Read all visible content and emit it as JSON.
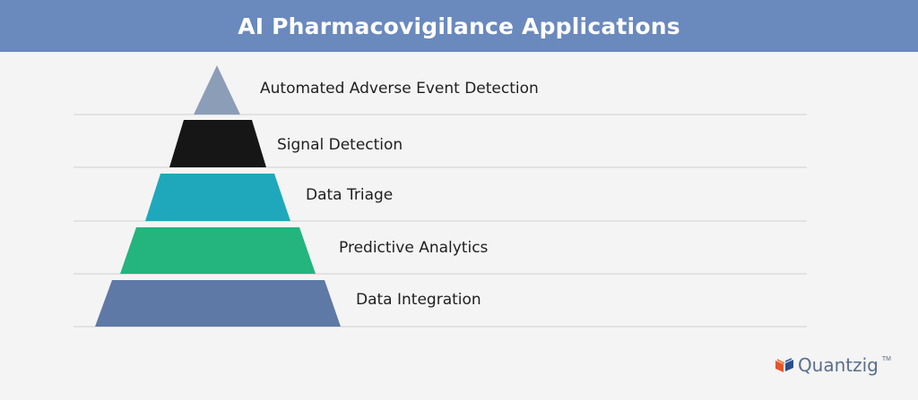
{
  "header": {
    "title": "AI Pharmacovigilance Applications",
    "background": "#6a89bd"
  },
  "pyramid": {
    "levels": [
      {
        "label": "Automated Adverse Event Detection",
        "color": "#8c9db7"
      },
      {
        "label": "Signal Detection",
        "color": "#161616"
      },
      {
        "label": "Data Triage",
        "color": "#1fa8bc"
      },
      {
        "label": "Predictive Analytics",
        "color": "#24b47e"
      },
      {
        "label": "Data Integration",
        "color": "#5f79a6"
      }
    ]
  },
  "logo": {
    "text": "Quantzig",
    "tm": "TM",
    "icon": "book-logo-icon"
  }
}
